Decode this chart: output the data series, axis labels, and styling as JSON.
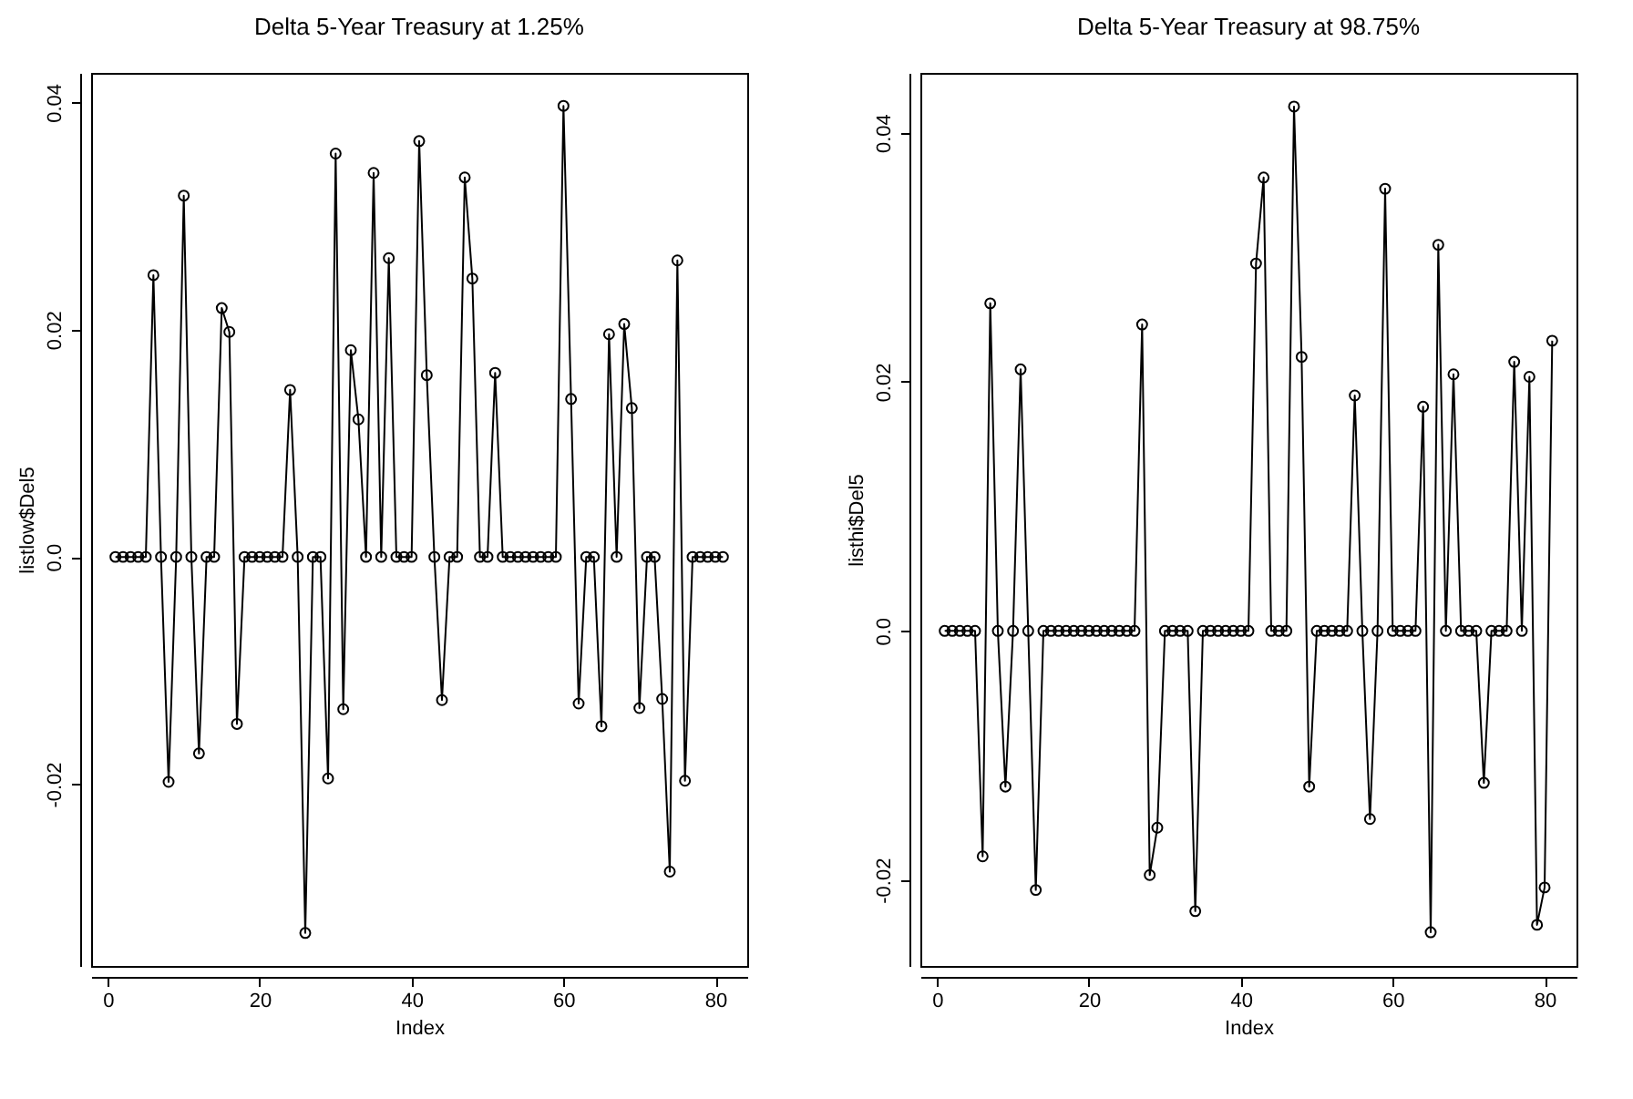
{
  "chart_data": [
    {
      "type": "line",
      "title": "Delta 5-Year Treasury at 1.25%",
      "xlabel": "Index",
      "ylabel": "listlow$Del5",
      "marker": "circle",
      "line_style": "solid",
      "grid": false,
      "x": [
        1,
        2,
        3,
        4,
        5,
        6,
        7,
        8,
        9,
        10,
        11,
        12,
        13,
        14,
        15,
        16,
        17,
        18,
        19,
        20,
        21,
        22,
        23,
        24,
        25,
        26,
        27,
        28,
        29,
        30,
        31,
        32,
        33,
        34,
        35,
        36,
        37,
        38,
        39,
        40,
        41,
        42,
        43,
        44,
        45,
        46,
        47,
        48,
        49,
        50,
        51,
        52,
        53,
        54,
        55,
        56,
        57,
        58,
        59,
        60,
        61,
        62,
        63,
        64,
        65,
        66,
        67,
        68,
        69,
        70,
        71,
        72,
        73,
        74,
        75,
        76,
        77,
        78,
        79,
        80,
        81
      ],
      "series": [
        {
          "color": "#000000",
          "values": [
            0,
            0,
            0,
            0,
            0,
            0.0248,
            0,
            -0.0198,
            0,
            0.0318,
            0,
            -0.0173,
            0,
            0,
            0.0219,
            0.0198,
            -0.0147,
            0,
            0,
            0,
            0,
            0,
            0,
            0.0147,
            0,
            -0.0331,
            0,
            0,
            -0.0195,
            0.0355,
            -0.0134,
            0.0182,
            0.0121,
            0,
            0.0338,
            0,
            0.0263,
            0,
            0,
            0,
            0.0366,
            0.016,
            0,
            -0.0126,
            0,
            0,
            0.0334,
            0.0245,
            0,
            0,
            0.0162,
            0,
            0,
            0,
            0,
            0,
            0,
            0,
            0,
            0.0397,
            0.0139,
            -0.0129,
            0,
            0,
            -0.0149,
            0.0196,
            0,
            0.0205,
            0.0131,
            -0.0133,
            0,
            0,
            -0.0125,
            -0.0277,
            0.0261,
            -0.0197,
            0,
            0,
            0,
            0,
            0
          ]
        }
      ],
      "xlim": [
        -2.2,
        84.2
      ],
      "xticks": [
        0,
        20,
        40,
        60,
        80
      ],
      "ylim": [
        -0.036,
        0.0426
      ],
      "yticks": [
        -0.02,
        {
          "value": 0,
          "label": "0.0"
        },
        0.02,
        0.04
      ]
    },
    {
      "type": "line",
      "title": "Delta 5-Year Treasury at 98.75%",
      "xlabel": "Index",
      "ylabel": "listhi$Del5",
      "marker": "circle",
      "line_style": "solid",
      "grid": false,
      "x": [
        1,
        2,
        3,
        4,
        5,
        6,
        7,
        8,
        9,
        10,
        11,
        12,
        13,
        14,
        15,
        16,
        17,
        18,
        19,
        20,
        21,
        22,
        23,
        24,
        25,
        26,
        27,
        28,
        29,
        30,
        31,
        32,
        33,
        34,
        35,
        36,
        37,
        38,
        39,
        40,
        41,
        42,
        43,
        44,
        45,
        46,
        47,
        48,
        49,
        50,
        51,
        52,
        53,
        54,
        55,
        56,
        57,
        58,
        59,
        60,
        61,
        62,
        63,
        64,
        65,
        66,
        67,
        68,
        69,
        70,
        71,
        72,
        73,
        74,
        75,
        76,
        77,
        78,
        79,
        80,
        81
      ],
      "series": [
        {
          "color": "#000000",
          "values": [
            0,
            0,
            0,
            0,
            0,
            -0.0181,
            0.0263,
            0,
            -0.0125,
            0,
            0.021,
            0,
            -0.0208,
            0,
            0,
            0,
            0,
            0,
            0,
            0,
            0,
            0,
            0,
            0,
            0,
            0,
            0.0246,
            -0.0196,
            -0.0158,
            0,
            0,
            0,
            0,
            -0.0225,
            0,
            0,
            0,
            0,
            0,
            0,
            0,
            0.0295,
            0.0364,
            0,
            0,
            0,
            0.0421,
            0.022,
            -0.0125,
            0,
            0,
            0,
            0,
            0,
            0.0189,
            0,
            -0.0151,
            0,
            0.0355,
            0,
            0,
            0,
            0,
            0.018,
            -0.0242,
            0.031,
            0,
            0.0206,
            0,
            0,
            0,
            -0.0122,
            0,
            0,
            0,
            0.0216,
            0,
            0.0204,
            -0.0236,
            -0.0206,
            0.0233
          ]
        }
      ],
      "xlim": [
        -2.2,
        84.2
      ],
      "xticks": [
        0,
        20,
        40,
        60,
        80
      ],
      "ylim": [
        -0.0269,
        0.0448
      ],
      "yticks": [
        -0.02,
        {
          "value": 0,
          "label": "0.0"
        },
        0.02,
        0.04
      ]
    }
  ]
}
